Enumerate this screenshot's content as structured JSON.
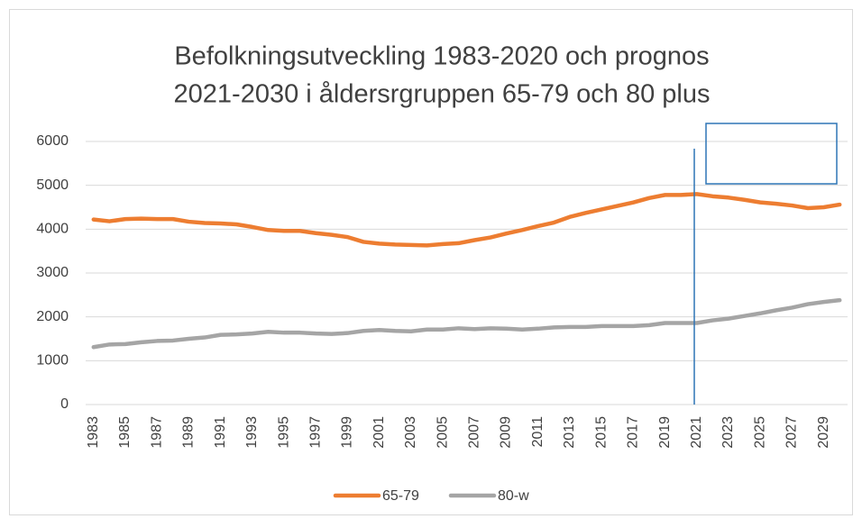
{
  "chart_data": {
    "type": "line",
    "title": [
      "Befolkningsutveckling 1983-2020 och prognos",
      "2021-2030 i åldersrgruppen 65-79 och 80 plus"
    ],
    "categories": [
      1983,
      null,
      1985,
      null,
      1987,
      null,
      1989,
      null,
      1991,
      null,
      1993,
      null,
      1995,
      null,
      1997,
      null,
      1999,
      null,
      2001,
      null,
      2003,
      null,
      2005,
      null,
      2007,
      null,
      2009,
      null,
      2011,
      null,
      2013,
      null,
      2015,
      null,
      2017,
      null,
      2019,
      null,
      2021,
      null,
      2023,
      null,
      2025,
      null,
      2027,
      null,
      2029,
      null
    ],
    "series": [
      {
        "name": "65-79",
        "color": "#ed7d31",
        "values": [
          4220,
          4180,
          4230,
          4240,
          4230,
          4230,
          4170,
          4140,
          4130,
          4110,
          4050,
          3980,
          3960,
          3960,
          3910,
          3870,
          3820,
          3710,
          3670,
          3650,
          3640,
          3630,
          3660,
          3680,
          3750,
          3810,
          3900,
          3980,
          4070,
          4150,
          4280,
          4370,
          4450,
          4530,
          4610,
          4710,
          4780,
          4780,
          4800,
          4750,
          4720,
          4670,
          4610,
          4580,
          4540,
          4480,
          4500,
          4560
        ]
      },
      {
        "name": "80-w",
        "color": "#a5a5a5",
        "values": [
          1310,
          1370,
          1380,
          1420,
          1450,
          1460,
          1500,
          1530,
          1590,
          1600,
          1620,
          1660,
          1640,
          1640,
          1620,
          1610,
          1630,
          1680,
          1700,
          1680,
          1670,
          1710,
          1710,
          1740,
          1720,
          1740,
          1730,
          1710,
          1730,
          1760,
          1770,
          1770,
          1790,
          1790,
          1790,
          1810,
          1860,
          1860,
          1860,
          1920,
          1960,
          2020,
          2080,
          2150,
          2210,
          2290,
          2340,
          2380
        ]
      }
    ],
    "ylim": [
      0,
      6000
    ],
    "yticks": [
      0,
      1000,
      2000,
      3000,
      4000,
      5000,
      6000
    ],
    "grid": true,
    "legend": "bottom"
  }
}
